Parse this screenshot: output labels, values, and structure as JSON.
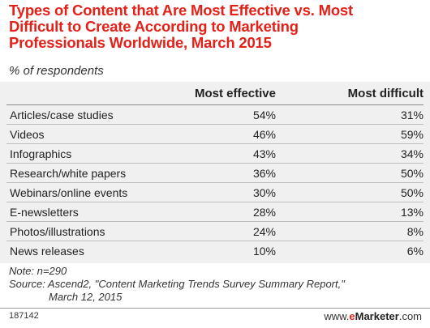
{
  "chart_data": {
    "type": "table",
    "title_lines": [
      "Types of Content that Are Most Effective vs. Most",
      "Difficult to Create According to Marketing",
      "Professionals Worldwide, March 2015"
    ],
    "subtitle": "% of respondents",
    "columns": [
      "Most effective",
      "Most difficult"
    ],
    "rows": [
      {
        "label": "Articles/case studies",
        "effective": "54%",
        "difficult": "31%"
      },
      {
        "label": "Videos",
        "effective": "46%",
        "difficult": "59%"
      },
      {
        "label": "Infographics",
        "effective": "43%",
        "difficult": "34%"
      },
      {
        "label": "Research/white papers",
        "effective": "36%",
        "difficult": "50%"
      },
      {
        "label": "Webinars/online events",
        "effective": "30%",
        "difficult": "50%"
      },
      {
        "label": "E-newsletters",
        "effective": "28%",
        "difficult": "13%"
      },
      {
        "label": "Photos/illustrations",
        "effective": "24%",
        "difficult": "8%"
      },
      {
        "label": "News releases",
        "effective": "10%",
        "difficult": "6%"
      }
    ],
    "effective_values": [
      54,
      46,
      43,
      36,
      30,
      28,
      24,
      10
    ],
    "difficult_values": [
      31,
      59,
      34,
      50,
      50,
      13,
      8,
      6
    ]
  },
  "notes": {
    "note": "Note: n=290",
    "source_line1": "Source: Ascend2, \"Content Marketing Trends Survey Summary Report,\"",
    "source_line2": "March 12, 2015"
  },
  "footer": {
    "chart_id": "187142",
    "brand_prefix": "www.",
    "brand_e": "e",
    "brand_rest": "Marketer",
    "brand_suffix": ".com"
  }
}
